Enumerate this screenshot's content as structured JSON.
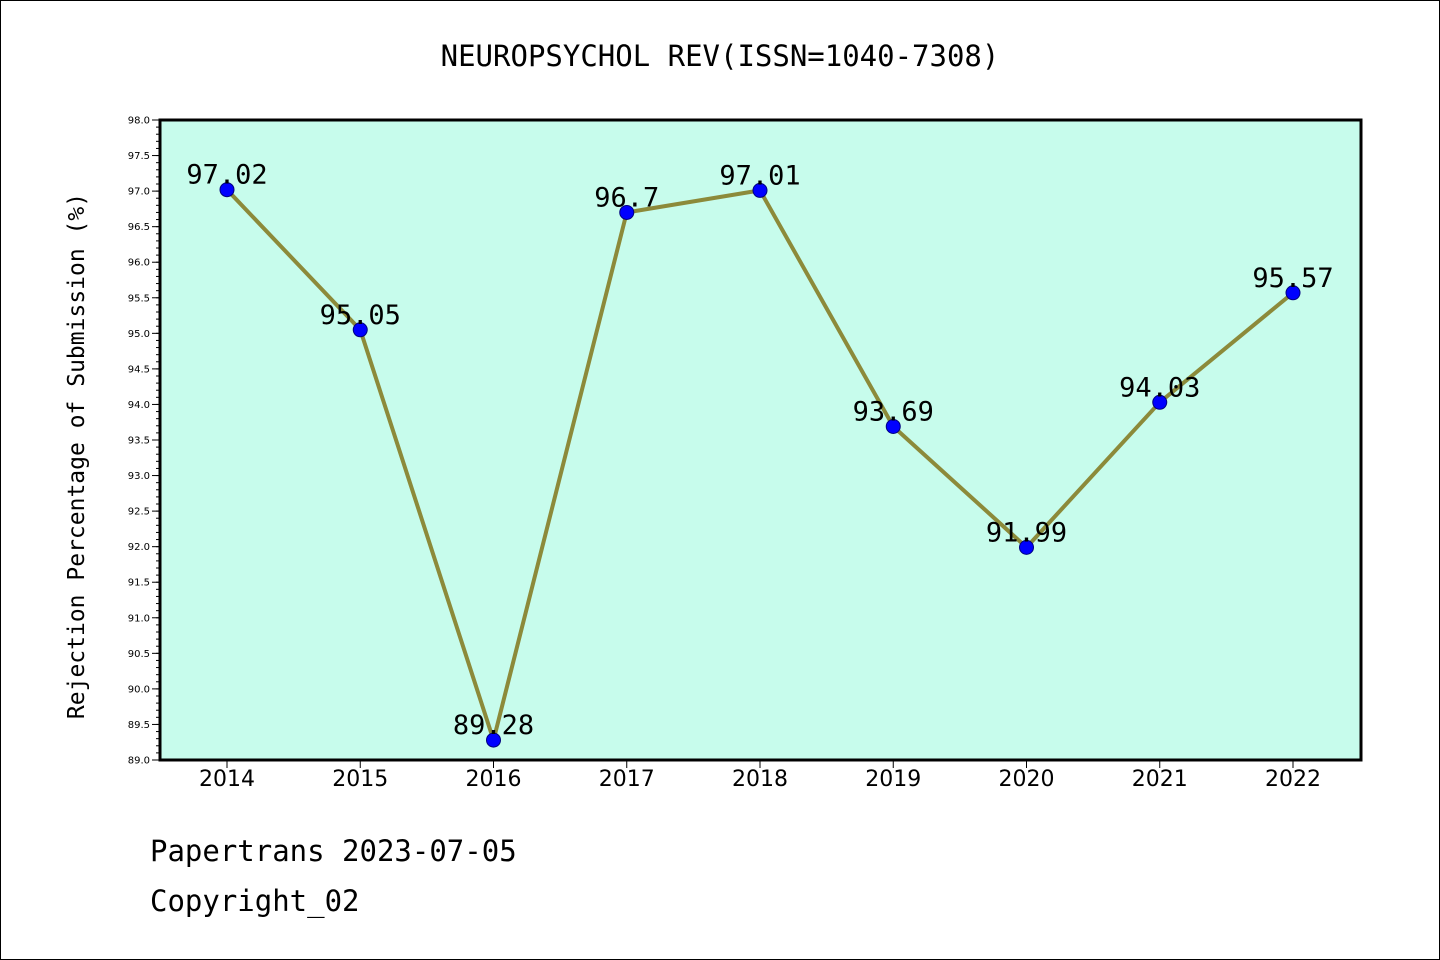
{
  "chart_data": {
    "type": "line",
    "title": "NEUROPSYCHOL REV(ISSN=1040-7308)",
    "xlabel": "",
    "ylabel": "Rejection Percentage of Submission (%)",
    "categories": [
      "2014",
      "2015",
      "2016",
      "2017",
      "2018",
      "2019",
      "2020",
      "2021",
      "2022"
    ],
    "series": [
      {
        "values": [
          97.02,
          95.05,
          89.28,
          96.7,
          97.01,
          93.69,
          91.99,
          94.03,
          95.57
        ],
        "labels": [
          "97.02",
          "95.05",
          "89.28",
          "96.7",
          "97.01",
          "93.69",
          "91.99",
          "94.03",
          "95.57"
        ]
      }
    ],
    "ylim": [
      89.0,
      98.0
    ],
    "yticks": [
      "89.0",
      "89.5",
      "90.0",
      "90.5",
      "91.0",
      "91.5",
      "92.0",
      "92.5",
      "93.0",
      "93.5",
      "94.0",
      "94.5",
      "95.0",
      "95.5",
      "96.0",
      "96.5",
      "97.0",
      "97.5",
      "98.0"
    ],
    "grid": false,
    "legend": "none",
    "colors": {
      "plot_background": "#c7fcec",
      "line": "#8c8a3a",
      "marker": "#0000ff",
      "axis": "#000000"
    }
  },
  "footer": {
    "line1": "Papertrans 2023-07-05",
    "line2": "Copyright_02"
  }
}
